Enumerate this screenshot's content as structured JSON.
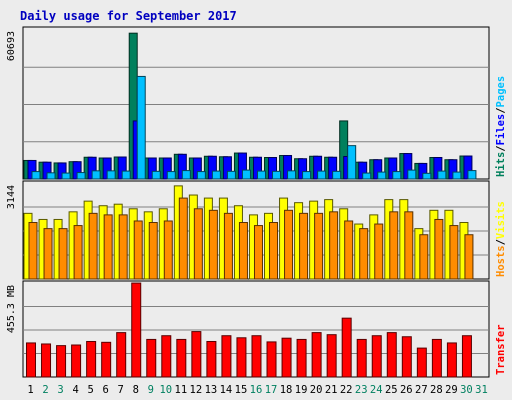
{
  "chart_data": {
    "type": "bar",
    "title": "Daily usage for September 2017",
    "categories": [
      "1",
      "2",
      "3",
      "4",
      "5",
      "6",
      "7",
      "8",
      "9",
      "10",
      "11",
      "12",
      "13",
      "14",
      "15",
      "16",
      "17",
      "18",
      "19",
      "20",
      "21",
      "22",
      "23",
      "24",
      "25",
      "26",
      "27",
      "28",
      "29",
      "30",
      "31"
    ],
    "weekend_days": [
      "2",
      "3",
      "9",
      "10",
      "16",
      "17",
      "23",
      "24",
      "30",
      "31"
    ],
    "panels": [
      {
        "name": "hits-files-pages",
        "max_label": "60693",
        "ymax": 60693,
        "side_labels": [
          "Hits",
          "Files",
          "Pages"
        ],
        "series": [
          {
            "name": "Hits",
            "color": "#00805c",
            "values": [
              7500,
              6800,
              6500,
              7000,
              8800,
              8500,
              8900,
              59000,
              8500,
              8500,
              10000,
              8500,
              9200,
              9000,
              10500,
              8800,
              8700,
              9500,
              8200,
              9200,
              8800,
              23500,
              6800,
              7800,
              8500,
              10300,
              6300,
              8700,
              7800,
              9300,
              0
            ]
          },
          {
            "name": "Files",
            "color": "#0000ff",
            "values": [
              7500,
              6800,
              6500,
              7000,
              8800,
              8500,
              8900,
              23500,
              8500,
              8500,
              10000,
              8500,
              9200,
              9000,
              10500,
              8800,
              8700,
              9500,
              8200,
              9200,
              8800,
              9100,
              6800,
              7800,
              8500,
              10300,
              6300,
              8700,
              7800,
              9300,
              0
            ]
          },
          {
            "name": "Pages",
            "color": "#00c0ff",
            "values": [
              3000,
              2500,
              2400,
              2600,
              3300,
              3300,
              3200,
              41500,
              3100,
              3000,
              3400,
              3000,
              3200,
              3100,
              3600,
              3200,
              3100,
              3300,
              3000,
              3200,
              3100,
              13500,
              2400,
              2800,
              3000,
              3600,
              2300,
              3200,
              2800,
              3400,
              0
            ]
          }
        ]
      },
      {
        "name": "visits-hosts",
        "max_label": "3144",
        "ymax": 3144,
        "side_labels": [
          "Hosts",
          "Visits"
        ],
        "series": [
          {
            "name": "Visits",
            "color": "#ffff00",
            "values": [
              2150,
              1950,
              1950,
              2200,
              2550,
              2400,
              2450,
              2300,
              2200,
              2300,
              3050,
              2750,
              2650,
              2650,
              2400,
              2100,
              2150,
              2650,
              2500,
              2550,
              2600,
              2300,
              1800,
              2100,
              2600,
              2600,
              1650,
              2250,
              2250,
              1850,
              0
            ]
          },
          {
            "name": "Hosts",
            "color": "#ff8c00",
            "values": [
              1850,
              1650,
              1650,
              1750,
              2150,
              2100,
              2100,
              1900,
              1850,
              1900,
              2650,
              2300,
              2250,
              2150,
              1850,
              1750,
              1850,
              2250,
              2150,
              2150,
              2200,
              1900,
              1650,
              1800,
              2200,
              2200,
              1450,
              1950,
              1750,
              1450,
              0
            ]
          }
        ]
      },
      {
        "name": "transfer",
        "max_label": "455.3 MB",
        "ymax": 455.3,
        "side_labels": [
          "Transfer"
        ],
        "series": [
          {
            "name": "Transfer",
            "color": "#ff0000",
            "values": [
              165,
              160,
              152,
              155,
              172,
              168,
              215,
              455,
              182,
              200,
              182,
              220,
              172,
              200,
              190,
              200,
              170,
              188,
              182,
              215,
              205,
              285,
              182,
              200,
              215,
              195,
              140,
              182,
              165,
              200,
              0
            ]
          }
        ]
      }
    ]
  }
}
